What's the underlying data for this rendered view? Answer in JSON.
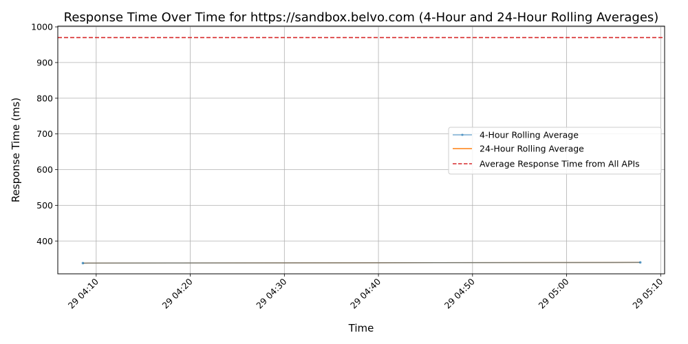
{
  "chart_data": {
    "type": "line",
    "title": "Response Time Over Time for https://sandbox.belvo.com (4-Hour and 24-Hour Rolling Averages)",
    "xlabel": "Time",
    "ylabel": "Response Time (ms)",
    "x_type": "time",
    "xlim": [
      "2024-01-29 04:05:55",
      "2024-01-29 05:10:25"
    ],
    "ylim": [
      308,
      1002
    ],
    "x_ticks": [
      {
        "value": "2024-01-29 04:10:00",
        "label": "29 04:10"
      },
      {
        "value": "2024-01-29 04:20:00",
        "label": "29 04:20"
      },
      {
        "value": "2024-01-29 04:30:00",
        "label": "29 04:30"
      },
      {
        "value": "2024-01-29 04:40:00",
        "label": "29 04:40"
      },
      {
        "value": "2024-01-29 04:50:00",
        "label": "29 04:50"
      },
      {
        "value": "2024-01-29 05:00:00",
        "label": "29 05:00"
      },
      {
        "value": "2024-01-29 05:10:00",
        "label": "29 05:10"
      }
    ],
    "y_ticks": [
      400,
      500,
      600,
      700,
      800,
      900,
      1000
    ],
    "grid": true,
    "legend_position": "center-right",
    "series": [
      {
        "name": "4-Hour Rolling Average",
        "color": "#1f77b4",
        "style": "line-with-markers",
        "x": [
          "2024-01-29 04:08:35",
          "2024-01-29 05:07:50"
        ],
        "values": [
          338,
          340
        ]
      },
      {
        "name": "24-Hour Rolling Average",
        "color": "#ff7f0e",
        "style": "line",
        "x": [
          "2024-01-29 04:08:35",
          "2024-01-29 05:07:50"
        ],
        "values": [
          338,
          340
        ]
      },
      {
        "name": "Average Response Time from All APIs",
        "color": "#d62728",
        "style": "dashed-horizontal",
        "values": [
          970
        ]
      }
    ]
  }
}
